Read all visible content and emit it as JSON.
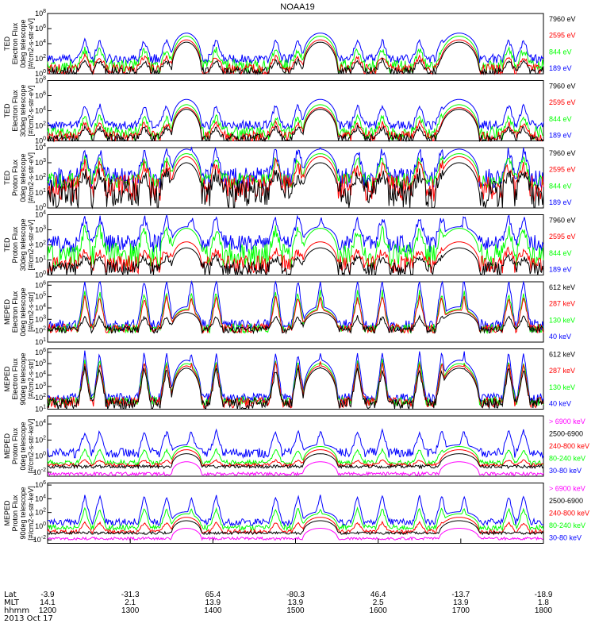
{
  "title": "NOAA19",
  "colors": {
    "blue": "#0000ff",
    "red": "#ff0000",
    "green": "#00ff00",
    "black": "#000000",
    "magenta": "#ff00ff"
  },
  "chart_data": [
    {
      "type": "line",
      "ylabel_lines": [
        "TED",
        "Electron Flux",
        "0deg telescope",
        "[#/cm2-s-str-eV]"
      ],
      "yticks": [
        "10^0",
        "10^2",
        "10^4",
        "10^6",
        "10^8"
      ],
      "ylim_log10": [
        0,
        8
      ],
      "legend": [
        {
          "label": "7960 eV",
          "color": "black"
        },
        {
          "label": "2595 eV",
          "color": "red"
        },
        {
          "label": "844 eV",
          "color": "green"
        },
        {
          "label": "189 eV",
          "color": "blue"
        }
      ],
      "series": [
        {
          "color": "blue",
          "base": 2.0,
          "noise": 0.6,
          "peak": 5.4,
          "cap": 2.2
        },
        {
          "color": "green",
          "base": 1.0,
          "noise": 0.9,
          "peak": 5.0,
          "cap": 1.8
        },
        {
          "color": "red",
          "base": 0.6,
          "noise": 0.7,
          "peak": 4.5,
          "cap": 1.4
        },
        {
          "color": "black",
          "base": 0.3,
          "noise": 0.6,
          "peak": 4.2,
          "cap": 1.2
        }
      ]
    },
    {
      "type": "line",
      "ylabel_lines": [
        "TED",
        "Electron Flux",
        "30deg telescope",
        "[#/cm2-s-str-eV]"
      ],
      "yticks": [
        "10^0",
        "10^2",
        "10^4",
        "10^6",
        "10^8"
      ],
      "ylim_log10": [
        0,
        8
      ],
      "legend": [
        {
          "label": "7960 eV",
          "color": "black"
        },
        {
          "label": "2595 eV",
          "color": "red"
        },
        {
          "label": "844 eV",
          "color": "green"
        },
        {
          "label": "189 eV",
          "color": "blue"
        }
      ],
      "series": [
        {
          "color": "blue",
          "base": 2.1,
          "noise": 0.6,
          "peak": 5.5,
          "cap": 2.4
        },
        {
          "color": "green",
          "base": 1.0,
          "noise": 0.9,
          "peak": 4.8,
          "cap": 1.8
        },
        {
          "color": "red",
          "base": 0.6,
          "noise": 0.7,
          "peak": 4.4,
          "cap": 1.4
        },
        {
          "color": "black",
          "base": 0.3,
          "noise": 0.6,
          "peak": 4.2,
          "cap": 1.2
        }
      ]
    },
    {
      "type": "line",
      "ylabel_lines": [
        "TED",
        "Proton Flux",
        "0deg telescope",
        "[#/cm2-s-str-eV]"
      ],
      "yticks": [
        "10^0",
        "10^1",
        "10^2",
        "10^3",
        "10^4"
      ],
      "ylim_log10": [
        0,
        4
      ],
      "legend": [
        {
          "label": "7960 eV",
          "color": "black"
        },
        {
          "label": "2595 eV",
          "color": "red"
        },
        {
          "label": "844 eV",
          "color": "green"
        },
        {
          "label": "189 eV",
          "color": "blue"
        }
      ],
      "series": [
        {
          "color": "blue",
          "base": 2.0,
          "noise": 0.7,
          "peak": 3.9,
          "cap": 1.5
        },
        {
          "color": "green",
          "base": 1.8,
          "noise": 0.5,
          "peak": 3.6,
          "cap": 1.3
        },
        {
          "color": "red",
          "base": 1.3,
          "noise": 0.9,
          "peak": 3.4,
          "cap": 1.1
        },
        {
          "color": "black",
          "base": 0.9,
          "noise": 1.0,
          "peak": 3.0,
          "cap": 0.9
        }
      ]
    },
    {
      "type": "line",
      "ylabel_lines": [
        "TED",
        "Proton Flux",
        "30deg telescope",
        "[#/cm2-s-str-eV]"
      ],
      "yticks": [
        "10^0",
        "10^1",
        "10^2",
        "10^3",
        "10^4"
      ],
      "ylim_log10": [
        0,
        4
      ],
      "legend": [
        {
          "label": "7960 eV",
          "color": "black"
        },
        {
          "label": "2595 eV",
          "color": "red"
        },
        {
          "label": "844 eV",
          "color": "green"
        },
        {
          "label": "189 eV",
          "color": "blue"
        }
      ],
      "series": [
        {
          "color": "blue",
          "base": 2.1,
          "noise": 0.6,
          "peak": 3.2,
          "cap": 1.4
        },
        {
          "color": "green",
          "base": 1.3,
          "noise": 0.8,
          "peak": 3.1,
          "cap": 1.3
        },
        {
          "color": "red",
          "base": 0.7,
          "noise": 0.6,
          "peak": 2.2,
          "cap": 0.6
        },
        {
          "color": "black",
          "base": 0.4,
          "noise": 0.5,
          "peak": 1.8,
          "cap": 0.5
        }
      ]
    },
    {
      "type": "line",
      "ylabel_lines": [
        "MEPED",
        "Electron Flux",
        "0deg telescope",
        "[#/cm2-s-str]"
      ],
      "yticks": [
        "10^1",
        "10^2",
        "10^3",
        "10^4",
        "10^5",
        "10^6"
      ],
      "ylim_log10": [
        1,
        6.3
      ],
      "legend": [
        {
          "label": "612 keV",
          "color": "black"
        },
        {
          "label": "287 keV",
          "color": "red"
        },
        {
          "label": "130 keV",
          "color": "green"
        },
        {
          "label": "40 keV",
          "color": "blue"
        }
      ],
      "series": [
        {
          "color": "blue",
          "base": 2.5,
          "noise": 0.5,
          "peak": 4.1,
          "cap": 3.8
        },
        {
          "color": "green",
          "base": 2.2,
          "noise": 0.4,
          "peak": 3.9,
          "cap": 3.0
        },
        {
          "color": "red",
          "base": 2.2,
          "noise": 0.4,
          "peak": 3.8,
          "cap": 2.6
        },
        {
          "color": "black",
          "base": 2.1,
          "noise": 0.3,
          "peak": 3.6,
          "cap": 1.0
        }
      ]
    },
    {
      "type": "line",
      "ylabel_lines": [
        "MEPED",
        "Electron Flux",
        "90deg telescope",
        "[#/cm2-s-str]"
      ],
      "yticks": [
        "10^1",
        "10^2",
        "10^3",
        "10^4",
        "10^5",
        "10^6"
      ],
      "ylim_log10": [
        1,
        6.3
      ],
      "legend": [
        {
          "label": "612 keV",
          "color": "black"
        },
        {
          "label": "287 keV",
          "color": "red"
        },
        {
          "label": "130 keV",
          "color": "green"
        },
        {
          "label": "40 keV",
          "color": "blue"
        }
      ],
      "series": [
        {
          "color": "blue",
          "base": 2.0,
          "noise": 0.4,
          "peak": 5.3,
          "cap": 3.8
        },
        {
          "color": "green",
          "base": 1.7,
          "noise": 0.4,
          "peak": 5.0,
          "cap": 3.4
        },
        {
          "color": "red",
          "base": 1.6,
          "noise": 0.5,
          "peak": 4.8,
          "cap": 3.2
        },
        {
          "color": "black",
          "base": 1.5,
          "noise": 0.5,
          "peak": 4.6,
          "cap": 2.8
        }
      ]
    },
    {
      "type": "line",
      "ylabel_lines": [
        "MEPED",
        "Proton Flux",
        "0deg telescope",
        "[#/cm2-s-str-keV]"
      ],
      "yticks": [
        "10^-2",
        "10^0",
        "10^2",
        "10^4"
      ],
      "ylim_log10": [
        -2.5,
        5
      ],
      "legend": [
        {
          "label": "> 6900 keV",
          "color": "magenta"
        },
        {
          "label": "2500-6900",
          "color": "black"
        },
        {
          "label": "240-800 keV",
          "color": "red"
        },
        {
          "label": "80-240 keV",
          "color": "green"
        },
        {
          "label": "30-80 keV",
          "color": "blue"
        }
      ],
      "series": [
        {
          "color": "blue",
          "base": 0.4,
          "noise": 0.6,
          "peak": 1.4,
          "cap": 2.4
        },
        {
          "color": "green",
          "base": -0.8,
          "noise": 0.3,
          "peak": 1.2,
          "cap": 1.5
        },
        {
          "color": "red",
          "base": -1.1,
          "noise": 0.2,
          "peak": 0.8,
          "cap": 0.5
        },
        {
          "color": "black",
          "base": -1.3,
          "noise": 0.2,
          "peak": 0.3,
          "cap": -0.6
        },
        {
          "color": "magenta",
          "base": -2.2,
          "noise": 0.2,
          "peak": -0.7,
          "cap": -2.2
        }
      ]
    },
    {
      "type": "line",
      "ylabel_lines": [
        "MEPED",
        "Proton Flux",
        "90deg telescope",
        "[#/cm2-s-str-keV]"
      ],
      "yticks": [
        "10^-2",
        "10^0",
        "10^2",
        "10^4",
        "10^6"
      ],
      "ylim_log10": [
        -2.5,
        6.3
      ],
      "legend": [
        {
          "label": "> 6900 keV",
          "color": "magenta"
        },
        {
          "label": "2500-6900",
          "color": "black"
        },
        {
          "label": "240-800 keV",
          "color": "red"
        },
        {
          "label": "80-240 keV",
          "color": "green"
        },
        {
          "label": "30-80 keV",
          "color": "blue"
        }
      ],
      "series": [
        {
          "color": "blue",
          "base": 0.6,
          "noise": 0.5,
          "peak": 2.1,
          "cap": 3.6
        },
        {
          "color": "green",
          "base": -0.2,
          "noise": 0.4,
          "peak": 1.8,
          "cap": 2.6
        },
        {
          "color": "red",
          "base": -0.8,
          "noise": 0.3,
          "peak": 1.3,
          "cap": 1.2
        },
        {
          "color": "black",
          "base": -1.0,
          "noise": 0.2,
          "peak": 0.8,
          "cap": -0.4
        },
        {
          "color": "magenta",
          "base": -1.8,
          "noise": 0.2,
          "peak": -0.3,
          "cap": -1.5
        }
      ]
    }
  ],
  "x_axis": {
    "row_labels": [
      "Lat",
      "MLT",
      "hhmm",
      "2013 Oct 17"
    ],
    "lat": [
      "-3.9",
      "-31.3",
      "65.4",
      "-80.3",
      "46.4",
      "-13.7",
      "-18.9"
    ],
    "mlt": [
      "14.1",
      "2.1",
      "13.9",
      "13.9",
      "2.5",
      "13.9",
      "1.8"
    ],
    "hhmm": [
      "1200",
      "1300",
      "1400",
      "1500",
      "1600",
      "1700",
      "1800"
    ]
  }
}
